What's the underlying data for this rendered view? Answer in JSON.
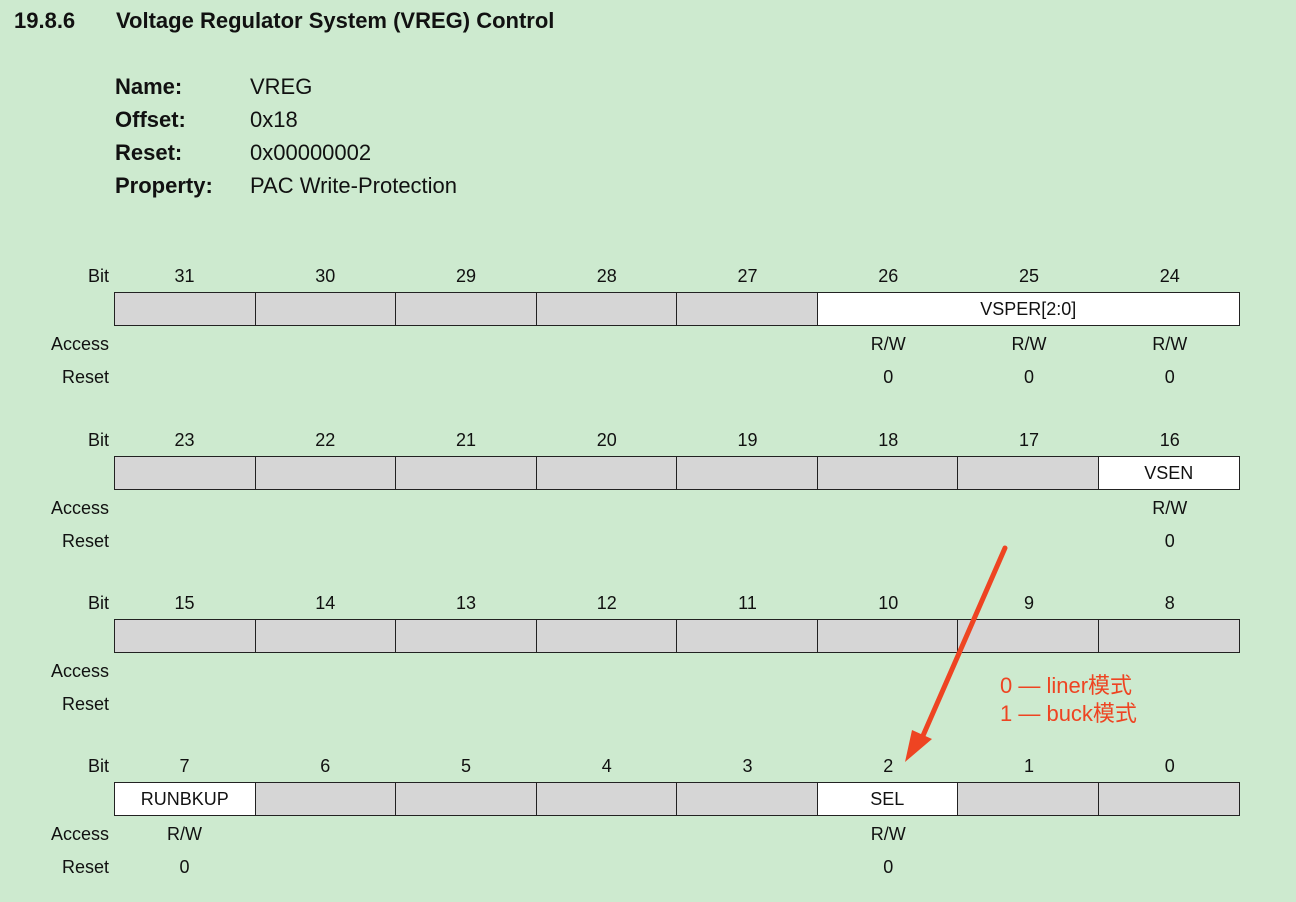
{
  "section": {
    "number": "19.8.6",
    "title": "Voltage Regulator System (VREG) Control"
  },
  "properties": [
    {
      "label": "Name:",
      "value": "VREG"
    },
    {
      "label": "Offset:",
      "value": "0x18"
    },
    {
      "label": "Reset:",
      "value": "0x00000002"
    },
    {
      "label": "Property:",
      "value": "PAC Write-Protection"
    }
  ],
  "row_labels": {
    "bit": "Bit",
    "access": "Access",
    "reset": "Reset"
  },
  "colors": {
    "reserved": "#d6d6d6",
    "field": "#ffffff",
    "background": "#cdeacf",
    "annotation": "#ee4422"
  },
  "registers": [
    {
      "bits": [
        "31",
        "30",
        "29",
        "28",
        "27",
        "26",
        "25",
        "24"
      ],
      "fields": [
        {
          "span": 1,
          "name": "",
          "reserved": true
        },
        {
          "span": 1,
          "name": "",
          "reserved": true
        },
        {
          "span": 1,
          "name": "",
          "reserved": true
        },
        {
          "span": 1,
          "name": "",
          "reserved": true
        },
        {
          "span": 1,
          "name": "",
          "reserved": true
        },
        {
          "span": 3,
          "name": "VSPER[2:0]",
          "reserved": false
        }
      ],
      "access": [
        "",
        "",
        "",
        "",
        "",
        "R/W",
        "R/W",
        "R/W"
      ],
      "reset": [
        "",
        "",
        "",
        "",
        "",
        "0",
        "0",
        "0"
      ]
    },
    {
      "bits": [
        "23",
        "22",
        "21",
        "20",
        "19",
        "18",
        "17",
        "16"
      ],
      "fields": [
        {
          "span": 1,
          "name": "",
          "reserved": true
        },
        {
          "span": 1,
          "name": "",
          "reserved": true
        },
        {
          "span": 1,
          "name": "",
          "reserved": true
        },
        {
          "span": 1,
          "name": "",
          "reserved": true
        },
        {
          "span": 1,
          "name": "",
          "reserved": true
        },
        {
          "span": 1,
          "name": "",
          "reserved": true
        },
        {
          "span": 1,
          "name": "",
          "reserved": true
        },
        {
          "span": 1,
          "name": "VSEN",
          "reserved": false
        }
      ],
      "access": [
        "",
        "",
        "",
        "",
        "",
        "",
        "",
        "R/W"
      ],
      "reset": [
        "",
        "",
        "",
        "",
        "",
        "",
        "",
        "0"
      ]
    },
    {
      "bits": [
        "15",
        "14",
        "13",
        "12",
        "11",
        "10",
        "9",
        "8"
      ],
      "fields": [
        {
          "span": 1,
          "name": "",
          "reserved": true
        },
        {
          "span": 1,
          "name": "",
          "reserved": true
        },
        {
          "span": 1,
          "name": "",
          "reserved": true
        },
        {
          "span": 1,
          "name": "",
          "reserved": true
        },
        {
          "span": 1,
          "name": "",
          "reserved": true
        },
        {
          "span": 1,
          "name": "",
          "reserved": true
        },
        {
          "span": 1,
          "name": "",
          "reserved": true
        },
        {
          "span": 1,
          "name": "",
          "reserved": true
        }
      ],
      "access": [
        "",
        "",
        "",
        "",
        "",
        "",
        "",
        ""
      ],
      "reset": [
        "",
        "",
        "",
        "",
        "",
        "",
        "",
        ""
      ]
    },
    {
      "bits": [
        "7",
        "6",
        "5",
        "4",
        "3",
        "2",
        "1",
        "0"
      ],
      "fields": [
        {
          "span": 1,
          "name": "RUNBKUP",
          "reserved": false
        },
        {
          "span": 1,
          "name": "",
          "reserved": true
        },
        {
          "span": 1,
          "name": "",
          "reserved": true
        },
        {
          "span": 1,
          "name": "",
          "reserved": true
        },
        {
          "span": 1,
          "name": "",
          "reserved": true
        },
        {
          "span": 1,
          "name": "SEL",
          "reserved": false
        },
        {
          "span": 1,
          "name": "",
          "reserved": true
        },
        {
          "span": 1,
          "name": "",
          "reserved": true
        }
      ],
      "access": [
        "R/W",
        "",
        "",
        "",
        "",
        "R/W",
        "",
        ""
      ],
      "reset": [
        "0",
        "",
        "",
        "",
        "",
        "0",
        "",
        ""
      ]
    }
  ],
  "annotation": {
    "lines": [
      "0 — liner模式",
      "1 — buck模式"
    ]
  }
}
